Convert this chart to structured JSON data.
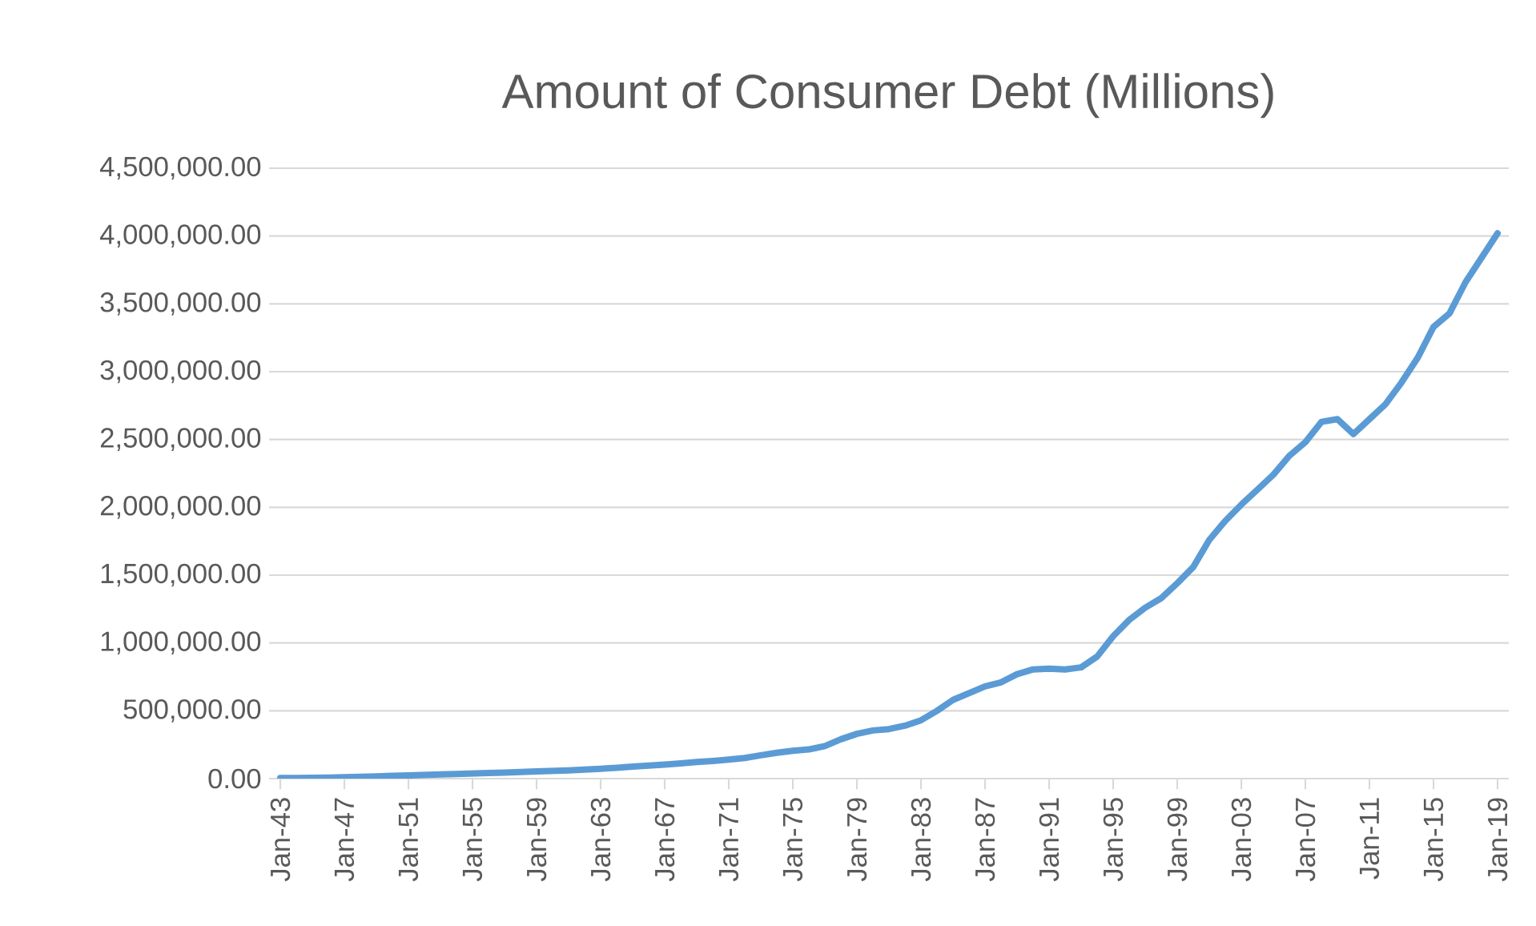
{
  "chart_data": {
    "type": "line",
    "title": "Amount of Consumer Debt (Millions)",
    "categories": [
      "Jan-43",
      null,
      null,
      null,
      "Jan-47",
      null,
      null,
      null,
      "Jan-51",
      null,
      null,
      null,
      "Jan-55",
      null,
      null,
      null,
      "Jan-59",
      null,
      null,
      null,
      "Jan-63",
      null,
      null,
      null,
      "Jan-67",
      null,
      null,
      null,
      "Jan-71",
      null,
      null,
      null,
      "Jan-75",
      null,
      null,
      null,
      "Jan-79",
      null,
      null,
      null,
      "Jan-83",
      null,
      null,
      null,
      "Jan-87",
      null,
      null,
      null,
      "Jan-91",
      null,
      null,
      null,
      "Jan-95",
      null,
      null,
      null,
      "Jan-99",
      null,
      null,
      null,
      "Jan-03",
      null,
      null,
      null,
      "Jan-07",
      null,
      null,
      null,
      "Jan-11",
      null,
      null,
      null,
      "Jan-15",
      null,
      null,
      null,
      "Jan-19"
    ],
    "series": [
      {
        "color": "#5b9bd5",
        "values": [
          5000,
          5000,
          6000,
          8000,
          10000,
          13000,
          16000,
          20000,
          23000,
          27000,
          31000,
          34000,
          38000,
          42000,
          45000,
          48000,
          53000,
          57000,
          61000,
          66000,
          72000,
          80000,
          88000,
          96000,
          103000,
          112000,
          122000,
          130000,
          140000,
          152000,
          172000,
          190000,
          205000,
          215000,
          240000,
          290000,
          330000,
          355000,
          365000,
          390000,
          430000,
          500000,
          580000,
          630000,
          680000,
          710000,
          770000,
          805000,
          810000,
          805000,
          820000,
          900000,
          1050000,
          1170000,
          1260000,
          1330000,
          1440000,
          1560000,
          1760000,
          1900000,
          2020000,
          2130000,
          2240000,
          2380000,
          2480000,
          2630000,
          2650000,
          2540000,
          2650000,
          2760000,
          2920000,
          3100000,
          3330000,
          3430000,
          3660000,
          3840000,
          4020000
        ]
      }
    ],
    "ylim": [
      0,
      4500000
    ],
    "yticks": [
      {
        "value": 0,
        "label": "0.00"
      },
      {
        "value": 500000,
        "label": "500,000.00"
      },
      {
        "value": 1000000,
        "label": "1,000,000.00"
      },
      {
        "value": 1500000,
        "label": "1,500,000.00"
      },
      {
        "value": 2000000,
        "label": "2,000,000.00"
      },
      {
        "value": 2500000,
        "label": "2,500,000.00"
      },
      {
        "value": 3000000,
        "label": "3,000,000.00"
      },
      {
        "value": 3500000,
        "label": "3,500,000.00"
      },
      {
        "value": 4000000,
        "label": "4,000,000.00"
      },
      {
        "value": 4500000,
        "label": "4,500,000.00"
      }
    ],
    "grid": "y"
  }
}
